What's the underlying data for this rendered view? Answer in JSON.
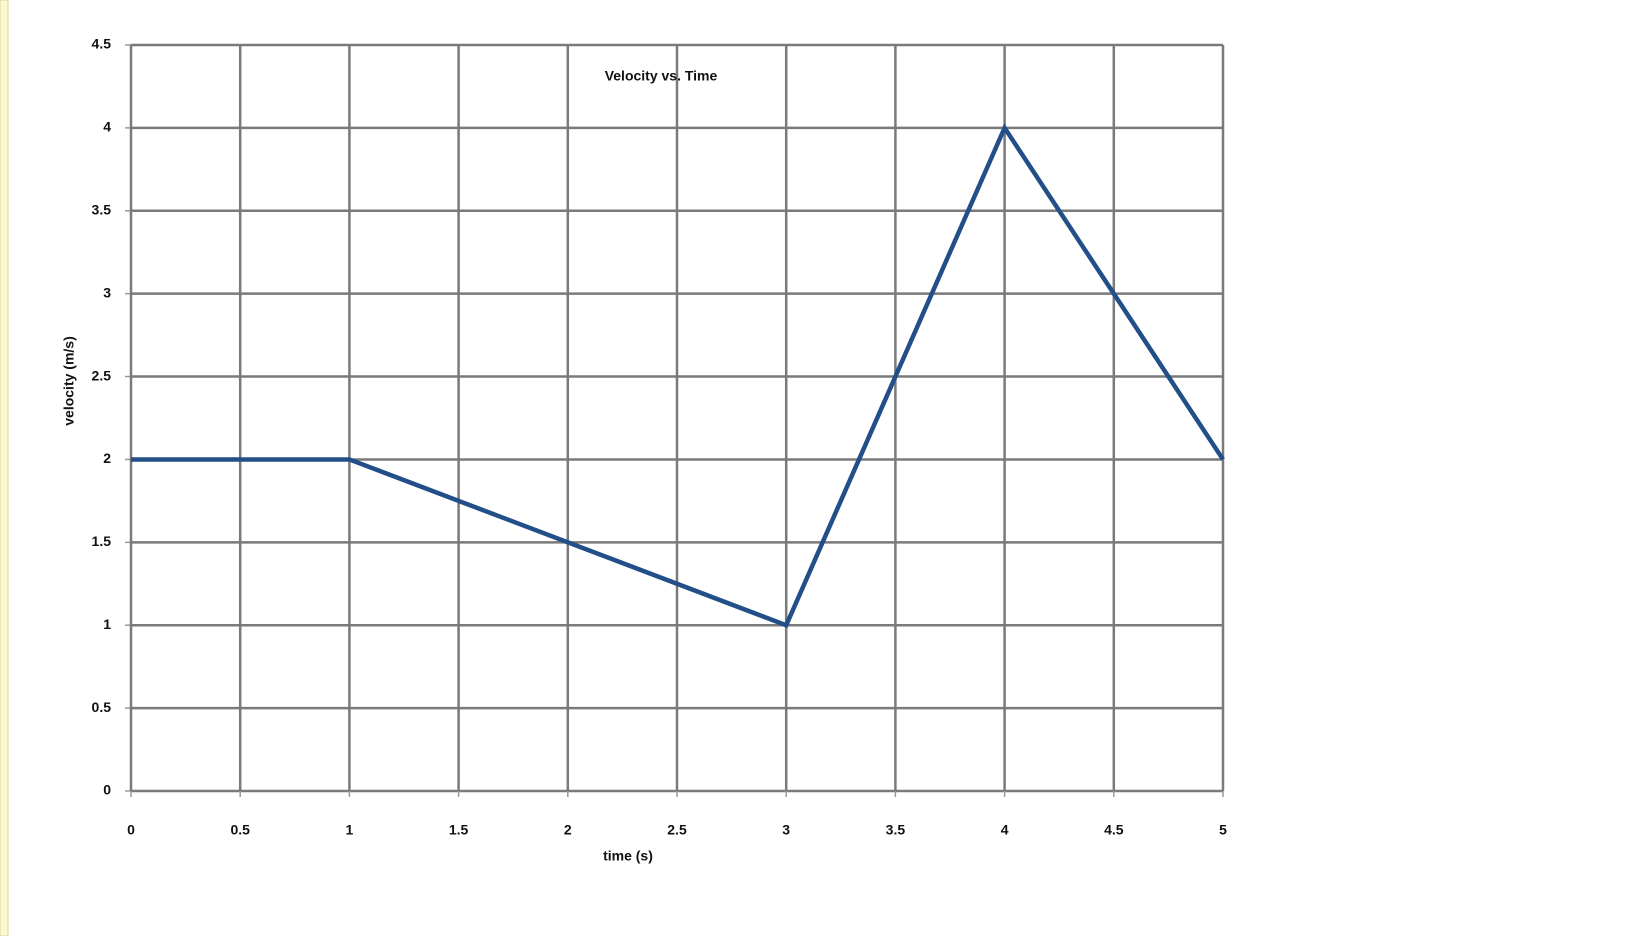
{
  "chart_data": {
    "type": "line",
    "title": "Velocity vs. Time",
    "x_label": "time (s)",
    "y_label": "velocity (m/s)",
    "x": [
      0,
      1,
      3,
      4,
      5
    ],
    "series": [
      {
        "color": "#234f89",
        "values": [
          2,
          2,
          1,
          4,
          2
        ]
      }
    ],
    "xlim": [
      0,
      5
    ],
    "xticks": [
      0,
      0.5,
      1,
      1.5,
      2,
      2.5,
      3,
      3.5,
      4,
      4.5,
      5
    ],
    "ylim": [
      0,
      4.5
    ],
    "yticks": [
      0,
      0.5,
      1,
      1.5,
      2,
      2.5,
      3,
      3.5,
      4,
      4.5
    ],
    "grid": true
  }
}
